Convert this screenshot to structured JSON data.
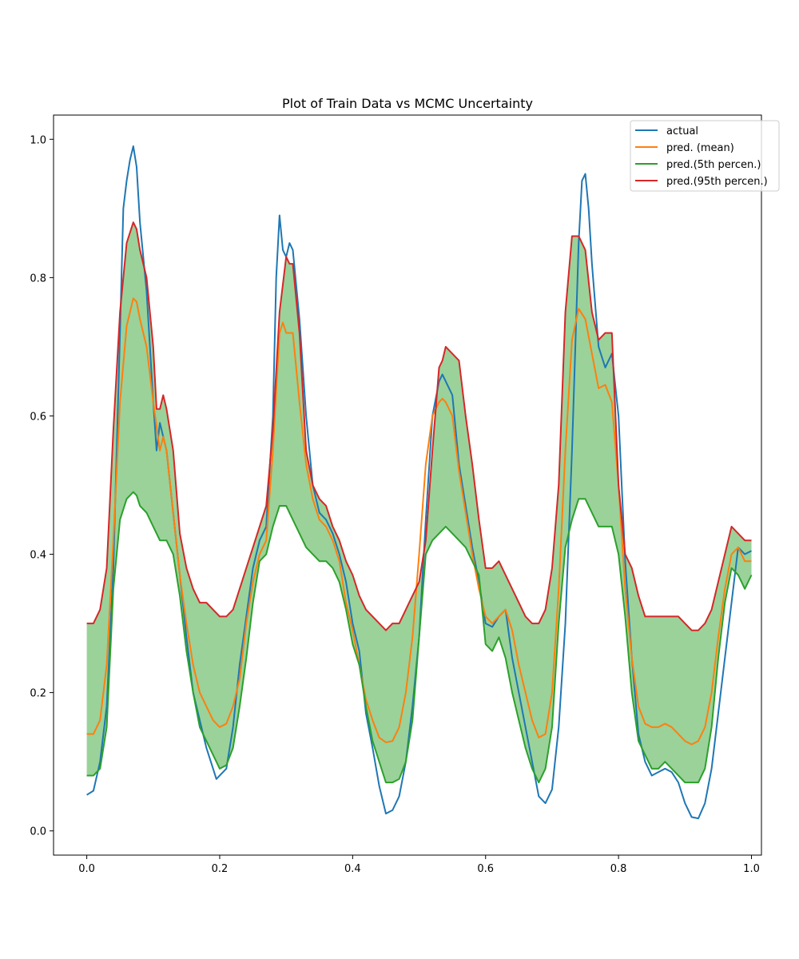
{
  "chart_data": {
    "type": "line",
    "title": "Plot of Train Data vs MCMC Uncertainty",
    "xlabel": "",
    "ylabel": "",
    "xlim": [
      -0.05,
      1.015
    ],
    "ylim": [
      -0.035,
      1.035
    ],
    "xticks": [
      "0.0",
      "0.2",
      "0.4",
      "0.6",
      "0.8",
      "1.0"
    ],
    "xtick_values": [
      0.0,
      0.2,
      0.4,
      0.6,
      0.8,
      1.0
    ],
    "yticks": [
      "0.0",
      "0.2",
      "0.4",
      "0.6",
      "0.8",
      "1.0"
    ],
    "ytick_values": [
      0.0,
      0.2,
      0.4,
      0.6,
      0.8,
      1.0
    ],
    "grid": false,
    "legend_position": "top-right",
    "band": {
      "lower_series": "pred.(5th percen.)",
      "upper_series": "pred.(95th percen.)",
      "color": "#2ca02c",
      "opacity": 0.48
    },
    "series": [
      {
        "name": "actual",
        "color": "#1f77b4",
        "x": [
          0.0,
          0.01,
          0.02,
          0.03,
          0.04,
          0.05,
          0.055,
          0.06,
          0.065,
          0.07,
          0.075,
          0.08,
          0.09,
          0.1,
          0.105,
          0.11,
          0.12,
          0.13,
          0.14,
          0.15,
          0.16,
          0.17,
          0.18,
          0.19,
          0.195,
          0.2,
          0.21,
          0.22,
          0.23,
          0.24,
          0.25,
          0.26,
          0.27,
          0.28,
          0.285,
          0.29,
          0.295,
          0.3,
          0.305,
          0.31,
          0.32,
          0.33,
          0.34,
          0.35,
          0.36,
          0.37,
          0.38,
          0.39,
          0.4,
          0.41,
          0.42,
          0.43,
          0.44,
          0.45,
          0.46,
          0.47,
          0.48,
          0.49,
          0.5,
          0.51,
          0.52,
          0.53,
          0.535,
          0.54,
          0.545,
          0.55,
          0.56,
          0.57,
          0.58,
          0.59,
          0.6,
          0.61,
          0.62,
          0.63,
          0.64,
          0.65,
          0.66,
          0.67,
          0.68,
          0.69,
          0.7,
          0.71,
          0.72,
          0.73,
          0.74,
          0.745,
          0.75,
          0.755,
          0.76,
          0.77,
          0.78,
          0.79,
          0.8,
          0.81,
          0.82,
          0.83,
          0.84,
          0.85,
          0.86,
          0.87,
          0.88,
          0.89,
          0.9,
          0.91,
          0.92,
          0.93,
          0.94,
          0.95,
          0.96,
          0.97,
          0.98,
          0.99,
          1.0
        ],
        "y": [
          0.052,
          0.058,
          0.1,
          0.18,
          0.38,
          0.72,
          0.9,
          0.94,
          0.97,
          0.99,
          0.96,
          0.88,
          0.78,
          0.62,
          0.55,
          0.59,
          0.55,
          0.46,
          0.37,
          0.28,
          0.2,
          0.16,
          0.12,
          0.09,
          0.075,
          0.08,
          0.09,
          0.15,
          0.24,
          0.31,
          0.38,
          0.42,
          0.44,
          0.6,
          0.8,
          0.89,
          0.84,
          0.83,
          0.85,
          0.84,
          0.74,
          0.6,
          0.5,
          0.46,
          0.45,
          0.43,
          0.4,
          0.36,
          0.3,
          0.26,
          0.17,
          0.12,
          0.065,
          0.025,
          0.03,
          0.05,
          0.1,
          0.18,
          0.28,
          0.45,
          0.6,
          0.65,
          0.66,
          0.65,
          0.64,
          0.63,
          0.53,
          0.47,
          0.41,
          0.36,
          0.3,
          0.295,
          0.31,
          0.32,
          0.25,
          0.2,
          0.15,
          0.1,
          0.05,
          0.04,
          0.06,
          0.15,
          0.3,
          0.55,
          0.85,
          0.94,
          0.95,
          0.9,
          0.82,
          0.7,
          0.67,
          0.69,
          0.6,
          0.39,
          0.25,
          0.14,
          0.1,
          0.08,
          0.085,
          0.09,
          0.085,
          0.07,
          0.04,
          0.02,
          0.018,
          0.04,
          0.09,
          0.17,
          0.25,
          0.33,
          0.41,
          0.4,
          0.405
        ]
      },
      {
        "name": "pred. (mean)",
        "color": "#ff7f0e",
        "x": [
          0.0,
          0.01,
          0.02,
          0.03,
          0.04,
          0.05,
          0.06,
          0.07,
          0.075,
          0.08,
          0.09,
          0.1,
          0.11,
          0.115,
          0.12,
          0.13,
          0.14,
          0.15,
          0.16,
          0.17,
          0.18,
          0.19,
          0.2,
          0.21,
          0.22,
          0.23,
          0.24,
          0.25,
          0.26,
          0.27,
          0.28,
          0.29,
          0.295,
          0.3,
          0.31,
          0.32,
          0.33,
          0.34,
          0.35,
          0.36,
          0.37,
          0.38,
          0.39,
          0.4,
          0.41,
          0.42,
          0.43,
          0.44,
          0.45,
          0.46,
          0.47,
          0.48,
          0.49,
          0.5,
          0.51,
          0.52,
          0.53,
          0.535,
          0.54,
          0.55,
          0.56,
          0.57,
          0.58,
          0.59,
          0.6,
          0.61,
          0.62,
          0.63,
          0.64,
          0.65,
          0.66,
          0.67,
          0.68,
          0.69,
          0.7,
          0.71,
          0.72,
          0.73,
          0.74,
          0.75,
          0.76,
          0.77,
          0.78,
          0.79,
          0.8,
          0.81,
          0.82,
          0.83,
          0.84,
          0.85,
          0.86,
          0.87,
          0.88,
          0.89,
          0.9,
          0.91,
          0.92,
          0.93,
          0.94,
          0.95,
          0.96,
          0.97,
          0.98,
          0.99,
          1.0
        ],
        "y": [
          0.14,
          0.14,
          0.16,
          0.24,
          0.42,
          0.62,
          0.73,
          0.77,
          0.765,
          0.74,
          0.7,
          0.62,
          0.55,
          0.57,
          0.55,
          0.46,
          0.37,
          0.3,
          0.24,
          0.2,
          0.18,
          0.16,
          0.15,
          0.155,
          0.18,
          0.22,
          0.3,
          0.36,
          0.4,
          0.42,
          0.55,
          0.72,
          0.735,
          0.72,
          0.72,
          0.62,
          0.53,
          0.48,
          0.45,
          0.44,
          0.42,
          0.39,
          0.33,
          0.29,
          0.24,
          0.19,
          0.16,
          0.135,
          0.128,
          0.13,
          0.15,
          0.2,
          0.28,
          0.4,
          0.53,
          0.6,
          0.62,
          0.625,
          0.62,
          0.6,
          0.52,
          0.46,
          0.4,
          0.35,
          0.31,
          0.3,
          0.31,
          0.32,
          0.29,
          0.24,
          0.2,
          0.16,
          0.135,
          0.14,
          0.2,
          0.35,
          0.55,
          0.71,
          0.755,
          0.74,
          0.69,
          0.64,
          0.645,
          0.62,
          0.5,
          0.35,
          0.25,
          0.18,
          0.155,
          0.15,
          0.15,
          0.155,
          0.15,
          0.14,
          0.13,
          0.125,
          0.13,
          0.15,
          0.2,
          0.28,
          0.35,
          0.4,
          0.41,
          0.39,
          0.39
        ]
      },
      {
        "name": "pred.(5th percen.)",
        "color": "#2ca02c",
        "x": [
          0.0,
          0.01,
          0.02,
          0.03,
          0.04,
          0.05,
          0.06,
          0.07,
          0.075,
          0.08,
          0.09,
          0.1,
          0.11,
          0.12,
          0.13,
          0.14,
          0.15,
          0.16,
          0.17,
          0.18,
          0.19,
          0.2,
          0.21,
          0.22,
          0.23,
          0.24,
          0.25,
          0.26,
          0.27,
          0.28,
          0.29,
          0.3,
          0.31,
          0.32,
          0.33,
          0.34,
          0.35,
          0.36,
          0.37,
          0.38,
          0.39,
          0.4,
          0.41,
          0.42,
          0.43,
          0.44,
          0.45,
          0.46,
          0.47,
          0.48,
          0.49,
          0.5,
          0.51,
          0.52,
          0.53,
          0.54,
          0.55,
          0.56,
          0.57,
          0.58,
          0.59,
          0.6,
          0.61,
          0.62,
          0.63,
          0.64,
          0.65,
          0.66,
          0.67,
          0.68,
          0.69,
          0.7,
          0.71,
          0.72,
          0.73,
          0.74,
          0.75,
          0.76,
          0.77,
          0.78,
          0.79,
          0.8,
          0.81,
          0.82,
          0.83,
          0.84,
          0.85,
          0.86,
          0.87,
          0.88,
          0.89,
          0.9,
          0.91,
          0.92,
          0.93,
          0.94,
          0.95,
          0.96,
          0.97,
          0.98,
          0.99,
          1.0
        ],
        "y": [
          0.08,
          0.08,
          0.09,
          0.15,
          0.35,
          0.45,
          0.48,
          0.49,
          0.485,
          0.47,
          0.46,
          0.44,
          0.42,
          0.42,
          0.4,
          0.34,
          0.26,
          0.2,
          0.15,
          0.13,
          0.11,
          0.09,
          0.095,
          0.12,
          0.18,
          0.25,
          0.33,
          0.39,
          0.4,
          0.44,
          0.47,
          0.47,
          0.45,
          0.43,
          0.41,
          0.4,
          0.39,
          0.39,
          0.38,
          0.36,
          0.32,
          0.27,
          0.24,
          0.18,
          0.13,
          0.1,
          0.07,
          0.07,
          0.075,
          0.1,
          0.16,
          0.28,
          0.4,
          0.42,
          0.43,
          0.44,
          0.43,
          0.42,
          0.41,
          0.39,
          0.37,
          0.27,
          0.26,
          0.28,
          0.25,
          0.2,
          0.16,
          0.12,
          0.09,
          0.07,
          0.09,
          0.15,
          0.3,
          0.41,
          0.45,
          0.48,
          0.48,
          0.46,
          0.44,
          0.44,
          0.44,
          0.4,
          0.31,
          0.2,
          0.13,
          0.11,
          0.09,
          0.09,
          0.1,
          0.09,
          0.08,
          0.07,
          0.07,
          0.07,
          0.09,
          0.15,
          0.25,
          0.33,
          0.38,
          0.37,
          0.35,
          0.37
        ]
      },
      {
        "name": "pred.(95th percen.)",
        "color": "#d62728",
        "x": [
          0.0,
          0.01,
          0.02,
          0.03,
          0.04,
          0.05,
          0.06,
          0.07,
          0.075,
          0.08,
          0.09,
          0.1,
          0.105,
          0.11,
          0.115,
          0.12,
          0.13,
          0.14,
          0.15,
          0.16,
          0.17,
          0.18,
          0.19,
          0.2,
          0.21,
          0.22,
          0.23,
          0.24,
          0.25,
          0.26,
          0.27,
          0.28,
          0.29,
          0.3,
          0.305,
          0.31,
          0.32,
          0.33,
          0.34,
          0.35,
          0.36,
          0.37,
          0.38,
          0.39,
          0.4,
          0.41,
          0.42,
          0.43,
          0.44,
          0.45,
          0.46,
          0.47,
          0.48,
          0.49,
          0.5,
          0.51,
          0.52,
          0.53,
          0.535,
          0.54,
          0.55,
          0.56,
          0.57,
          0.58,
          0.59,
          0.6,
          0.61,
          0.62,
          0.63,
          0.64,
          0.65,
          0.66,
          0.67,
          0.68,
          0.69,
          0.7,
          0.71,
          0.72,
          0.73,
          0.74,
          0.75,
          0.76,
          0.77,
          0.78,
          0.79,
          0.8,
          0.81,
          0.82,
          0.83,
          0.84,
          0.85,
          0.86,
          0.87,
          0.88,
          0.89,
          0.9,
          0.91,
          0.92,
          0.93,
          0.94,
          0.95,
          0.96,
          0.97,
          0.98,
          0.99,
          1.0
        ],
        "y": [
          0.3,
          0.3,
          0.32,
          0.38,
          0.58,
          0.75,
          0.85,
          0.88,
          0.87,
          0.84,
          0.8,
          0.7,
          0.61,
          0.61,
          0.63,
          0.61,
          0.55,
          0.43,
          0.38,
          0.35,
          0.33,
          0.33,
          0.32,
          0.31,
          0.31,
          0.32,
          0.35,
          0.38,
          0.41,
          0.44,
          0.47,
          0.58,
          0.75,
          0.83,
          0.82,
          0.82,
          0.72,
          0.55,
          0.5,
          0.48,
          0.47,
          0.44,
          0.42,
          0.39,
          0.37,
          0.34,
          0.32,
          0.31,
          0.3,
          0.29,
          0.3,
          0.3,
          0.32,
          0.34,
          0.36,
          0.42,
          0.55,
          0.67,
          0.68,
          0.7,
          0.69,
          0.68,
          0.6,
          0.53,
          0.45,
          0.38,
          0.38,
          0.39,
          0.37,
          0.35,
          0.33,
          0.31,
          0.3,
          0.3,
          0.32,
          0.38,
          0.5,
          0.75,
          0.86,
          0.86,
          0.84,
          0.75,
          0.71,
          0.72,
          0.72,
          0.5,
          0.4,
          0.38,
          0.34,
          0.31,
          0.31,
          0.31,
          0.31,
          0.31,
          0.31,
          0.3,
          0.29,
          0.29,
          0.3,
          0.32,
          0.36,
          0.4,
          0.44,
          0.43,
          0.42,
          0.42
        ]
      }
    ]
  }
}
